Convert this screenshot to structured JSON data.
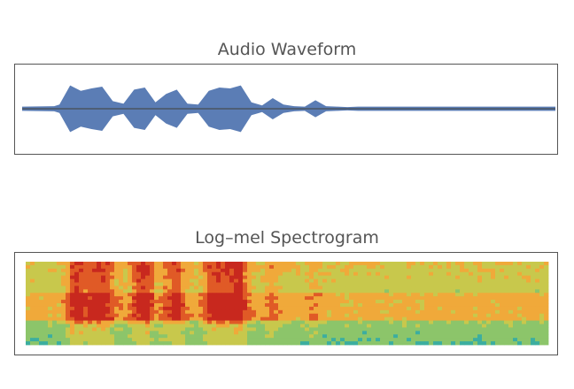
{
  "colors": {
    "waveform": "#5b7db5",
    "baseline": "#4a5560",
    "frame": "#555555",
    "title": "#555555",
    "spectrogram_palette": [
      "#3cae9f",
      "#8cc56a",
      "#c8c84c",
      "#f0a93a",
      "#e05a26",
      "#c8281e"
    ]
  },
  "chart_data": [
    {
      "type": "line",
      "title": "Audio Waveform",
      "xlabel": "",
      "ylabel": "",
      "grid": false,
      "ylim": [
        -1,
        1
      ],
      "x": [
        0,
        0.06,
        0.07,
        0.09,
        0.11,
        0.13,
        0.15,
        0.17,
        0.19,
        0.21,
        0.23,
        0.25,
        0.27,
        0.29,
        0.31,
        0.33,
        0.35,
        0.37,
        0.39,
        0.41,
        0.43,
        0.45,
        0.47,
        0.49,
        0.51,
        0.53,
        0.55,
        0.57,
        0.59,
        0.61,
        0.63,
        0.65,
        0.7,
        0.8,
        0.9,
        1.0
      ],
      "envelope": [
        0.05,
        0.06,
        0.1,
        0.55,
        0.42,
        0.48,
        0.52,
        0.18,
        0.12,
        0.45,
        0.5,
        0.15,
        0.35,
        0.45,
        0.12,
        0.1,
        0.42,
        0.5,
        0.48,
        0.55,
        0.15,
        0.08,
        0.25,
        0.1,
        0.06,
        0.05,
        0.2,
        0.06,
        0.05,
        0.04,
        0.05,
        0.05,
        0.05,
        0.05,
        0.05,
        0.05
      ]
    },
    {
      "type": "heatmap",
      "title": "Log–mel Spectrogram",
      "xlabel": "",
      "ylabel": "",
      "grid": false
    }
  ]
}
